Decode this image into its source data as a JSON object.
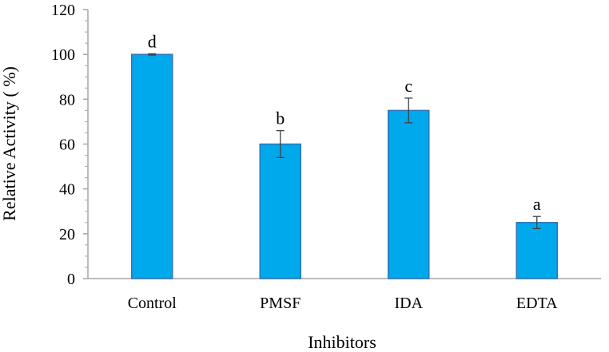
{
  "chart_data": {
    "type": "bar",
    "title": "",
    "xlabel": "Inhibitors",
    "ylabel": "Relative Activity ( %)",
    "categories": [
      "Control",
      "PMSF",
      "IDA",
      "EDTA"
    ],
    "values": [
      100,
      60,
      75,
      25
    ],
    "errors": [
      0.3,
      6,
      5.5,
      2.7
    ],
    "significance_labels": [
      "d",
      "b",
      "c",
      "a"
    ],
    "ylim": [
      0,
      120
    ],
    "yticks": [
      0,
      20,
      40,
      60,
      80,
      100,
      120
    ],
    "ytick_labels": [
      "0",
      "20",
      "40",
      "60",
      "80",
      "100",
      "120"
    ],
    "grid": false,
    "bar_color": "#00A8EC",
    "bar_edge_color": "#2E75B6",
    "error_bar_color": "#404040",
    "axis_color": "#A6A6A6"
  }
}
